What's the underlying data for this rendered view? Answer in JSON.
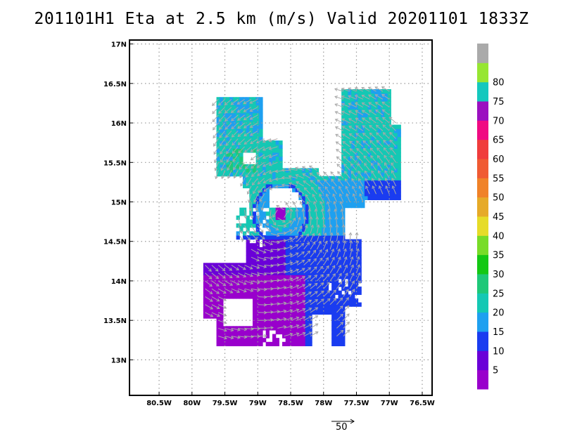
{
  "title": "201101H1 Eta at 2.5 km (m/s) Valid 20201101 1833Z",
  "map": {
    "lon_range": [
      -80.95,
      -76.35
    ],
    "lat_range": [
      12.55,
      17.05
    ],
    "lon_ticks": [
      {
        "value": -80.5,
        "label": "80.5W"
      },
      {
        "value": -80.0,
        "label": "80W"
      },
      {
        "value": -79.5,
        "label": "79.5W"
      },
      {
        "value": -79.0,
        "label": "79W"
      },
      {
        "value": -78.5,
        "label": "78.5W"
      },
      {
        "value": -78.0,
        "label": "78W"
      },
      {
        "value": -77.5,
        "label": "77.5W"
      },
      {
        "value": -77.0,
        "label": "77W"
      },
      {
        "value": -76.5,
        "label": "76.5W"
      }
    ],
    "lat_ticks": [
      {
        "value": 13.0,
        "label": "13N"
      },
      {
        "value": 13.5,
        "label": "13.5N"
      },
      {
        "value": 14.0,
        "label": "14N"
      },
      {
        "value": 14.5,
        "label": "14.5N"
      },
      {
        "value": 15.0,
        "label": "15N"
      },
      {
        "value": 15.5,
        "label": "15.5N"
      },
      {
        "value": 16.0,
        "label": "16N"
      },
      {
        "value": 16.5,
        "label": "16.5N"
      },
      {
        "value": 17.0,
        "label": "17N"
      }
    ],
    "grid": true,
    "vector_color": "#a9a9a9",
    "vortex_center": {
      "lon": -78.65,
      "lat": 14.85
    }
  },
  "colorbar": {
    "levels": [
      {
        "upper": 5,
        "color": "#9900cc",
        "label": ""
      },
      {
        "upper": 10,
        "color": "#6a00d8",
        "label": "5"
      },
      {
        "upper": 15,
        "color": "#1a3cf0",
        "label": "10"
      },
      {
        "upper": 20,
        "color": "#1ea0f0",
        "label": "15"
      },
      {
        "upper": 25,
        "color": "#14c8b4",
        "label": "20"
      },
      {
        "upper": 30,
        "color": "#1ec878",
        "label": "25"
      },
      {
        "upper": 35,
        "color": "#14c814",
        "label": "30"
      },
      {
        "upper": 40,
        "color": "#78dc28",
        "label": "35"
      },
      {
        "upper": 45,
        "color": "#e6dc28",
        "label": "40"
      },
      {
        "upper": 50,
        "color": "#e6aa28",
        "label": "45"
      },
      {
        "upper": 55,
        "color": "#f08228",
        "label": "50"
      },
      {
        "upper": 60,
        "color": "#f05a32",
        "label": "55"
      },
      {
        "upper": 65,
        "color": "#f03c3c",
        "label": "60"
      },
      {
        "upper": 70,
        "color": "#f00a82",
        "label": "65"
      },
      {
        "upper": 75,
        "color": "#9b10c0",
        "label": "70"
      },
      {
        "upper": 80,
        "color": "#14c8be",
        "label": "75"
      },
      {
        "upper": 85,
        "color": "#96e632",
        "label": "80"
      },
      {
        "upper": 90,
        "color": "#aaaaaa",
        "label": ""
      }
    ]
  },
  "vector_scale": {
    "label": "50"
  }
}
